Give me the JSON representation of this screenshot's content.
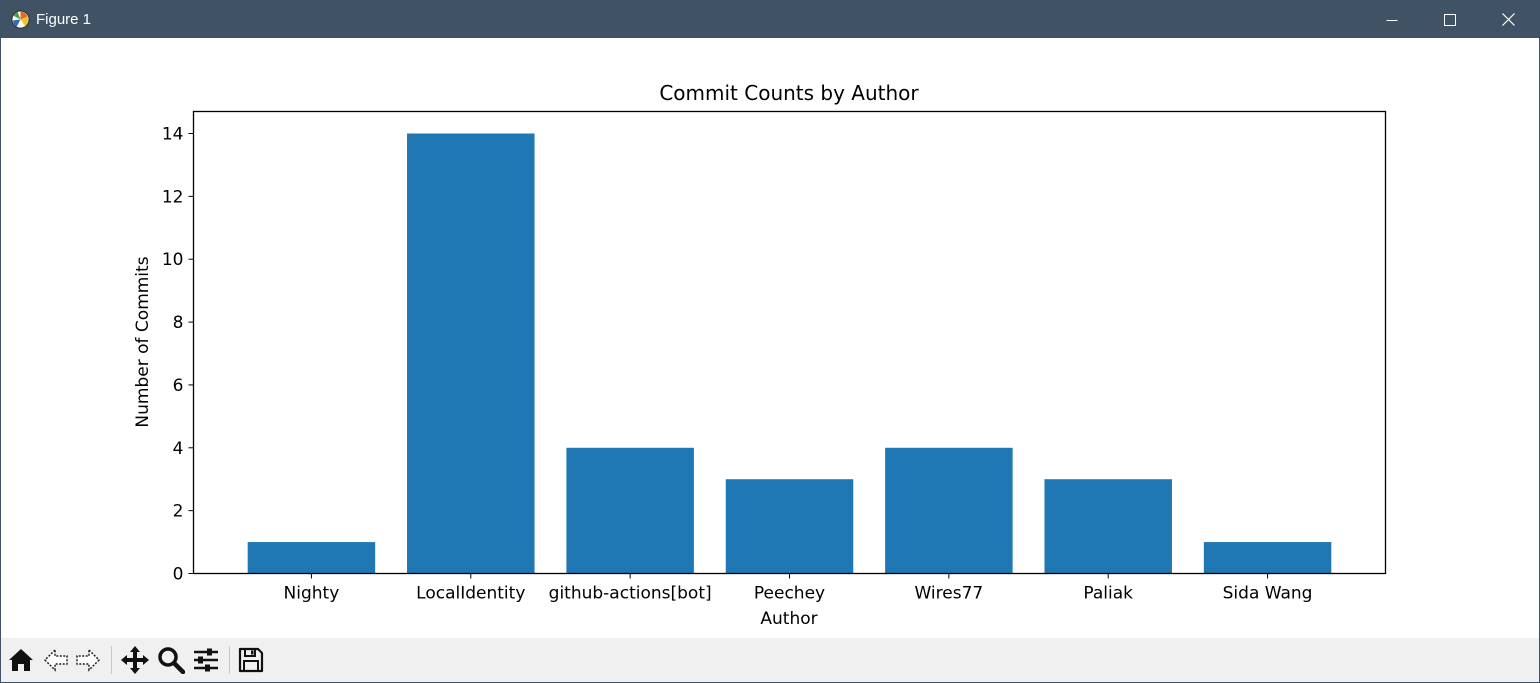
{
  "window": {
    "title": "Figure 1"
  },
  "colors": {
    "bar": "#1f77b4",
    "titlebar": "#405365",
    "toolbar": "#f0f0f0"
  },
  "toolbar": {
    "icons": [
      "home-icon",
      "back-arrow-icon",
      "forward-arrow-icon",
      "pan-icon",
      "zoom-icon",
      "configure-subplots-icon",
      "save-icon"
    ]
  },
  "chart_data": {
    "type": "bar",
    "title": "Commit Counts by Author",
    "xlabel": "Author",
    "ylabel": "Number of Commits",
    "categories": [
      "Nighty",
      "LocalIdentity",
      "github-actions[bot]",
      "Peechey",
      "Wires77",
      "Paliak",
      "Sida Wang"
    ],
    "values": [
      1,
      14,
      4,
      3,
      4,
      3,
      1
    ],
    "ylim": [
      0,
      14.7
    ],
    "yticks": [
      0,
      2,
      4,
      6,
      8,
      10,
      12,
      14
    ],
    "grid": false
  }
}
